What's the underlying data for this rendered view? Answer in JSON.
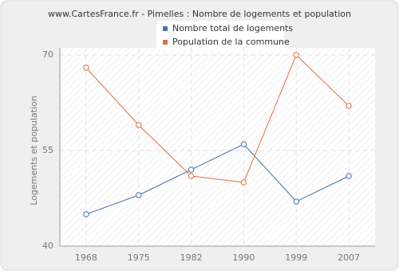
{
  "chart_data": {
    "type": "line",
    "title": "www.CartesFrance.fr - Pimelles : Nombre de logements et population",
    "y_label": "Logements et population",
    "categories": [
      "1968",
      "1975",
      "1982",
      "1990",
      "1999",
      "2007"
    ],
    "series": [
      {
        "name": "Nombre total de logements",
        "color": "#4a72a8",
        "values": [
          45,
          48,
          52,
          56,
          47,
          51
        ]
      },
      {
        "name": "Population de la commune",
        "color": "#e07040",
        "values": [
          68,
          59,
          51,
          50,
          70,
          62
        ]
      }
    ],
    "ylim": [
      40,
      70
    ],
    "yticks": [
      40,
      55,
      70
    ],
    "grid": true
  }
}
